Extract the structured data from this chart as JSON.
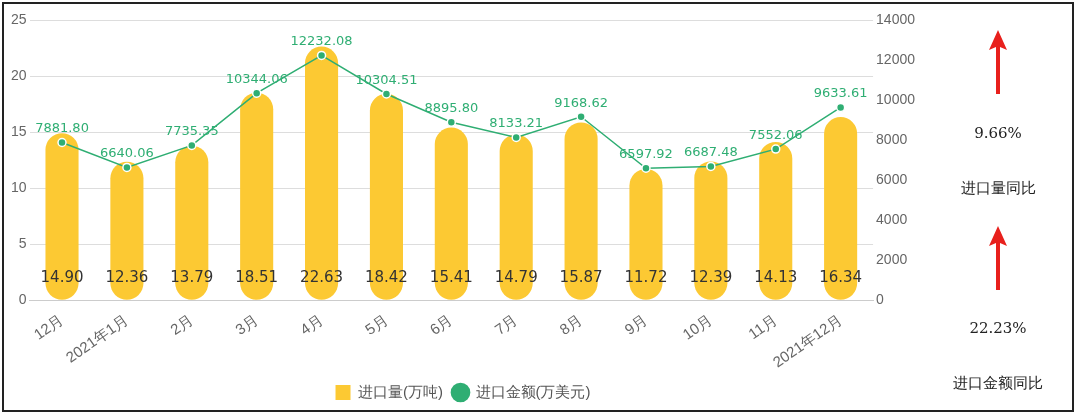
{
  "chart_data": {
    "type": "bar",
    "categories": [
      "12月",
      "2021年1月",
      "2月",
      "3月",
      "4月",
      "5月",
      "6月",
      "7月",
      "8月",
      "9月",
      "10月",
      "11月",
      "2021年12月"
    ],
    "series": [
      {
        "name": "进口量(万吨)",
        "color": "#fcc933",
        "values": [
          14.9,
          12.36,
          13.79,
          18.51,
          22.63,
          18.42,
          15.41,
          14.79,
          15.87,
          11.72,
          12.39,
          14.13,
          16.34
        ],
        "value_labels": [
          "14.90",
          "12.36",
          "13.79",
          "18.51",
          "22.63",
          "18.42",
          "15.41",
          "14.79",
          "15.87",
          "11.72",
          "12.39",
          "14.13",
          "16.34"
        ]
      },
      {
        "name": "进口金额(万美元)",
        "type": "line",
        "axis": "y2",
        "color": "#2fae73",
        "values": [
          7881.8,
          6640.06,
          7735.35,
          10344.06,
          12232.08,
          10304.51,
          8895.8,
          8133.21,
          9168.62,
          6597.92,
          6687.48,
          7552.06,
          9633.61
        ],
        "value_labels": [
          "7881.80",
          "6640.06",
          "7735.35",
          "10344.06",
          "12232.08",
          "10304.51",
          "8895.80",
          "8133.21",
          "9168.62",
          "6597.92",
          "6687.48",
          "7552.06",
          "9633.61"
        ]
      }
    ],
    "ylim": [
      0,
      25
    ],
    "yticks": [
      0,
      5,
      10,
      15,
      20,
      25
    ],
    "y2lim": [
      0,
      14000
    ],
    "y2ticks": [
      0,
      2000,
      4000,
      6000,
      8000,
      10000,
      12000,
      14000
    ],
    "grid": "y",
    "legend": "bottom",
    "marker": "circle",
    "annotations": [
      "9.66%",
      "进口量同比",
      "22.23%",
      "进口金额同比"
    ]
  }
}
